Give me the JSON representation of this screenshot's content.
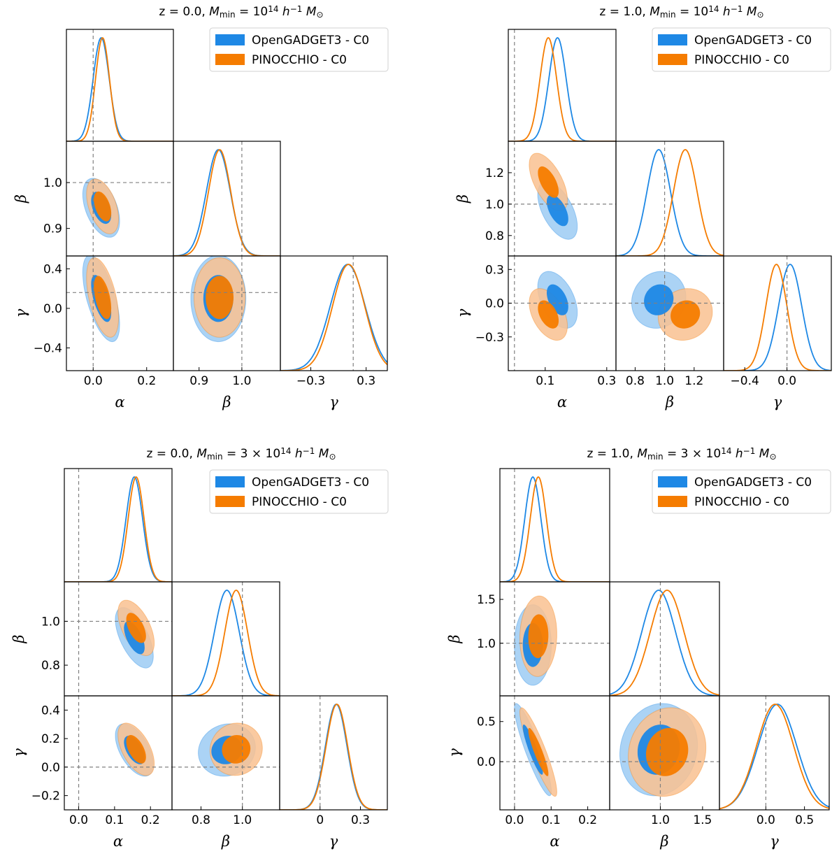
{
  "colors": {
    "blue": "#1e88e5",
    "blue_light": "#9ccbf3",
    "orange": "#f57c00",
    "orange_light": "#f9c190",
    "ref_line": "#808080"
  },
  "legend": [
    "OpenGADGET3 - C0",
    "PINOCCHIO - C0"
  ],
  "params": [
    "α",
    "β",
    "γ"
  ],
  "chart_data": [
    {
      "type": "triangle",
      "title": "z = 0.0, M_min = 10^14 h^-1 M_sun",
      "title_parts": {
        "pre": "z = 0.0, ",
        "M": "M",
        "sub": "min",
        "eq": " = 10",
        "exp": "14",
        "post": " h",
        "hexp": "−1",
        "m": " M",
        "odot": "⊙"
      },
      "truth": [
        0.0,
        1.0,
        0.16
      ],
      "ranges": [
        [
          -0.1,
          0.3
        ],
        [
          0.84,
          1.09
        ],
        [
          -0.63,
          0.53
        ]
      ],
      "ticks": [
        [
          0.0,
          0.2
        ],
        [
          0.9,
          1.0
        ],
        [
          -0.3,
          0.3
        ]
      ],
      "ytick_labels": {
        "beta": [
          0.9,
          1.0
        ],
        "gamma": [
          -0.4,
          0.0,
          0.4
        ]
      },
      "tick_text": {
        "x": [
          [
            "0.0",
            "0.2"
          ],
          [
            "0.9",
            "1.0"
          ],
          [
            "−0.3",
            "0.3"
          ]
        ],
        "beta": [
          "0.9",
          "1.0"
        ],
        "gamma": [
          "−0.4",
          "0.0",
          "0.4"
        ]
      },
      "series": [
        {
          "name": "OpenGADGET3 - C0",
          "mean": [
            0.03,
            0.945,
            0.1
          ],
          "sd": [
            0.03,
            0.028,
            0.19
          ],
          "rho": [
            -0.45,
            -0.6,
            0.0
          ]
        },
        {
          "name": "PINOCCHIO - C0",
          "mean": [
            0.035,
            0.948,
            0.11
          ],
          "sd": [
            0.026,
            0.026,
            0.175
          ],
          "rho": [
            -0.45,
            -0.5,
            0.0
          ]
        }
      ]
    },
    {
      "type": "triangle",
      "title": "z = 1.0, M_min = 10^14 h^-1 M_sun",
      "title_parts": {
        "pre": "z = 1.0, ",
        "M": "M",
        "sub": "min",
        "eq": " = 10",
        "exp": "14",
        "post": " h",
        "hexp": "−1",
        "m": " M",
        "odot": "⊙"
      },
      "truth": [
        0.0,
        1.0,
        0.0
      ],
      "ranges": [
        [
          -0.02,
          0.33
        ],
        [
          0.67,
          1.4
        ],
        [
          -0.6,
          0.42
        ]
      ],
      "ticks": [
        [
          0.1,
          0.3
        ],
        [
          0.8,
          1.0,
          1.2
        ],
        [
          -0.4,
          0.0
        ]
      ],
      "ytick_labels": {
        "beta": [
          0.8,
          1.0,
          1.2
        ],
        "gamma": [
          -0.3,
          0.0,
          0.3
        ]
      },
      "tick_text": {
        "x": [
          [
            "0.1",
            "0.3"
          ],
          [
            "0.8",
            "1.0",
            "1.2"
          ],
          [
            "−0.4",
            "0.0"
          ]
        ],
        "beta": [
          "0.8",
          "1.0",
          "1.2"
        ],
        "gamma": [
          "−0.3",
          "0.0",
          "0.3"
        ]
      },
      "series": [
        {
          "name": "OpenGADGET3 - C0",
          "mean": [
            0.14,
            0.96,
            0.03
          ],
          "sd": [
            0.028,
            0.08,
            0.11
          ],
          "rho": [
            -0.55,
            -0.45,
            0.1
          ]
        },
        {
          "name": "PINOCCHIO - C0",
          "mean": [
            0.11,
            1.14,
            -0.1
          ],
          "sd": [
            0.027,
            0.08,
            0.1
          ],
          "rho": [
            -0.6,
            -0.45,
            0.1
          ]
        }
      ]
    },
    {
      "type": "triangle",
      "title": "z = 0.0, M_min = 3 x 10^14 h^-1 M_sun",
      "title_parts": {
        "pre": "z = 0.0, ",
        "M": "M",
        "sub": "min",
        "eq": " = 3 × 10",
        "exp": "14",
        "post": " h",
        "hexp": "−1",
        "m": " M",
        "odot": "⊙"
      },
      "truth": [
        0.0,
        1.0,
        0.0
      ],
      "ranges": [
        [
          -0.04,
          0.26
        ],
        [
          0.66,
          1.18
        ],
        [
          -0.3,
          0.5
        ]
      ],
      "ticks": [
        [
          0.0,
          0.1,
          0.2
        ],
        [
          0.8,
          1.0
        ],
        [
          0.0,
          0.3
        ]
      ],
      "ytick_labels": {
        "beta": [
          0.8,
          1.0
        ],
        "gamma": [
          -0.2,
          0.0,
          0.2,
          0.4
        ]
      },
      "tick_text": {
        "x": [
          [
            "0.0",
            "0.1",
            "0.2"
          ],
          [
            "0.8",
            "1.0"
          ],
          [
            "0",
            "0.3"
          ]
        ],
        "beta": [
          "0.8",
          "1.0"
        ],
        "gamma": [
          "−0.2",
          "0.0",
          "0.2",
          "0.4"
        ]
      },
      "series": [
        {
          "name": "OpenGADGET3 - C0",
          "mean": [
            0.155,
            0.925,
            0.12
          ],
          "sd": [
            0.023,
            0.06,
            0.08
          ],
          "rho": [
            -0.6,
            -0.55,
            0.1
          ]
        },
        {
          "name": "PINOCCHIO - C0",
          "mean": [
            0.16,
            0.97,
            0.125
          ],
          "sd": [
            0.022,
            0.055,
            0.08
          ],
          "rho": [
            -0.55,
            -0.55,
            0.05
          ]
        }
      ]
    },
    {
      "type": "triangle",
      "title": "z = 1.0, M_min = 3 x 10^14 h^-1 M_sun",
      "title_parts": {
        "pre": "z = 1.0, ",
        "M": "M",
        "sub": "min",
        "eq": " = 3 × 10",
        "exp": "14",
        "post": " h",
        "hexp": "−1",
        "m": " M",
        "odot": "⊙"
      },
      "truth": [
        0.0,
        1.0,
        0.0
      ],
      "ranges": [
        [
          -0.04,
          0.26
        ],
        [
          0.4,
          1.7
        ],
        [
          -0.6,
          0.82
        ]
      ],
      "ticks": [
        [
          0.0,
          0.1,
          0.2
        ],
        [
          1.0,
          1.5
        ],
        [
          0.0,
          0.5
        ]
      ],
      "ytick_labels": {
        "beta": [
          1.0,
          1.5
        ],
        "gamma": [
          0.0,
          0.5
        ]
      },
      "tick_text": {
        "x": [
          [
            "0.0",
            "0.1",
            "0.2"
          ],
          [
            "1.0",
            "1.5"
          ],
          [
            "0.0",
            "0.5"
          ]
        ],
        "beta": [
          "1.0",
          "1.5"
        ],
        "gamma": [
          "0.0",
          "0.5"
        ]
      },
      "series": [
        {
          "name": "OpenGADGET3 - C0",
          "mean": [
            0.05,
            0.98,
            0.15
          ],
          "sd": [
            0.022,
            0.2,
            0.25
          ],
          "rho": [
            0.0,
            -0.9,
            0.1
          ]
        },
        {
          "name": "PINOCCHIO - C0",
          "mean": [
            0.065,
            1.08,
            0.12
          ],
          "sd": [
            0.022,
            0.2,
            0.24
          ],
          "rho": [
            0.05,
            -0.9,
            0.1
          ]
        }
      ]
    }
  ]
}
